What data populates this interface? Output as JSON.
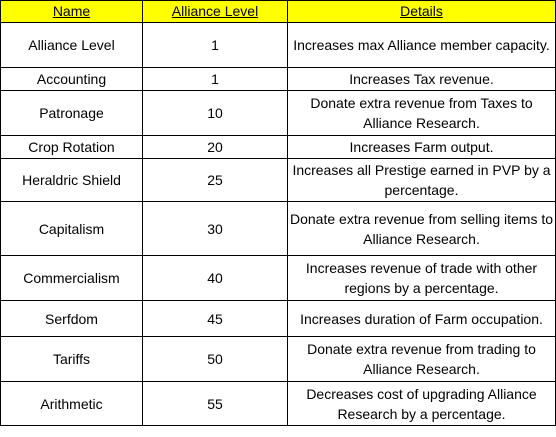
{
  "table": {
    "headers": {
      "name": "Name",
      "level": "Alliance Level",
      "details": "Details"
    },
    "colors": {
      "header_background": "#ffff00",
      "border": "#000000",
      "text": "#000000"
    },
    "rows": [
      {
        "name": "Alliance Level",
        "level": "1",
        "details": "Increases max Alliance member capacity."
      },
      {
        "name": "Accounting",
        "level": "1",
        "details": "Increases Tax revenue."
      },
      {
        "name": "Patronage",
        "level": "10",
        "details": "Donate extra revenue from Taxes to Alliance Research."
      },
      {
        "name": "Crop Rotation",
        "level": "20",
        "details": "Increases Farm output."
      },
      {
        "name": "Heraldric Shield",
        "level": "25",
        "details": "Increases all Prestige earned in PVP by a percentage."
      },
      {
        "name": "Capitalism",
        "level": "30",
        "details": "Donate extra revenue from selling items to Alliance Research."
      },
      {
        "name": "Commercialism",
        "level": "40",
        "details": "Increases revenue of trade with other regions by a percentage."
      },
      {
        "name": "Serfdom",
        "level": "45",
        "details": "Increases duration of Farm occupation."
      },
      {
        "name": "Tariffs",
        "level": "50",
        "details": "Donate extra revenue from trading to Alliance Research."
      },
      {
        "name": "Arithmetic",
        "level": "55",
        "details": "Decreases cost of upgrading Alliance Research by a percentage."
      }
    ]
  }
}
